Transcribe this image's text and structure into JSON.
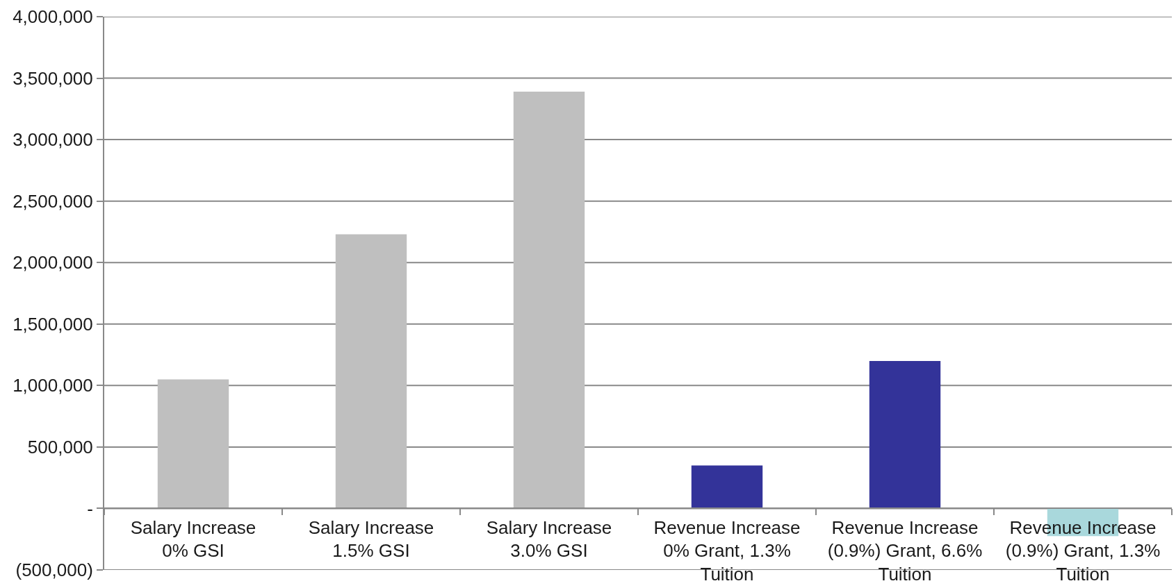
{
  "chart_data": {
    "type": "bar",
    "categories": [
      "Salary Increase\n0% GSI",
      "Salary Increase\n1.5% GSI",
      "Salary Increase\n3.0% GSI",
      "Revenue Increase\n0% Grant, 1.3%\nTuition",
      "Revenue Increase\n(0.9%) Grant, 6.6%\nTuition",
      "Revenue Increase\n(0.9%) Grant, 1.3%\nTuition"
    ],
    "values": [
      1050000,
      2230000,
      3390000,
      350000,
      1200000,
      -225000
    ],
    "colors": [
      "#bfbfbf",
      "#bfbfbf",
      "#bfbfbf",
      "#333399",
      "#333399",
      "#a9d8dc"
    ],
    "ylim": [
      -500000,
      4000000
    ],
    "yticks": [
      {
        "value": -500000,
        "label": "(500,000)"
      },
      {
        "value": 0,
        "label": "-"
      },
      {
        "value": 500000,
        "label": "500,000"
      },
      {
        "value": 1000000,
        "label": "1,000,000"
      },
      {
        "value": 1500000,
        "label": "1,500,000"
      },
      {
        "value": 2000000,
        "label": "2,000,000"
      },
      {
        "value": 2500000,
        "label": "2,500,000"
      },
      {
        "value": 3000000,
        "label": "3,000,000"
      },
      {
        "value": 3500000,
        "label": "3,500,000"
      },
      {
        "value": 4000000,
        "label": "4,000,000"
      }
    ],
    "grid": "y"
  }
}
